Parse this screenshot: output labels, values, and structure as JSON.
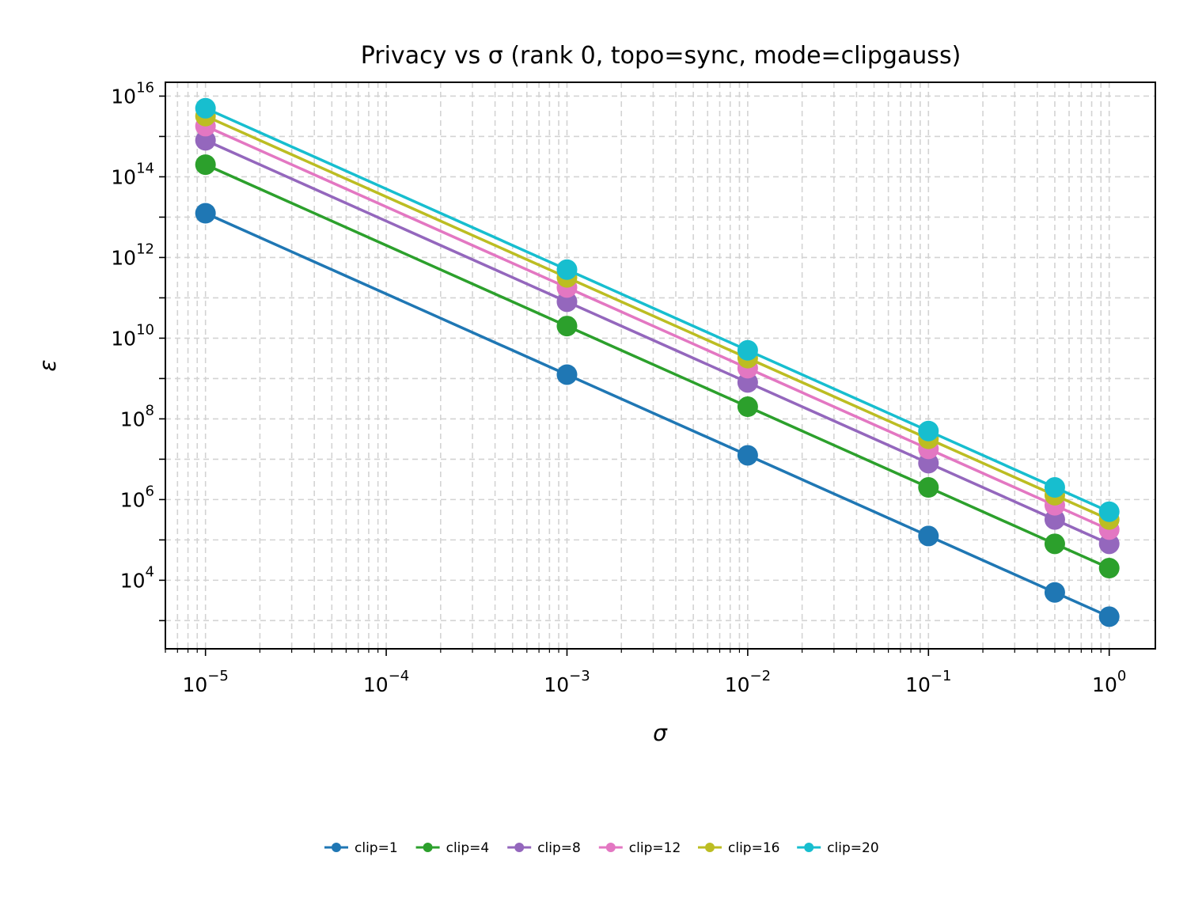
{
  "chart_data": {
    "type": "line",
    "title": "Privacy vs σ (rank 0, topo=sync, mode=clipgauss)",
    "xlabel": "σ",
    "ylabel": "ε",
    "xscale": "log",
    "yscale": "log",
    "xlim": [
      6e-06,
      1.8
    ],
    "ylim": [
      200,
      2.2e+16
    ],
    "grid": true,
    "legend_position": "below",
    "x": [
      1e-05,
      0.001,
      0.01,
      0.1,
      0.5,
      1
    ],
    "x_ticks": [
      {
        "value": 1e-05,
        "base": "10",
        "exp": "−5"
      },
      {
        "value": 0.0001,
        "base": "10",
        "exp": "−4"
      },
      {
        "value": 0.001,
        "base": "10",
        "exp": "−3"
      },
      {
        "value": 0.01,
        "base": "10",
        "exp": "−2"
      },
      {
        "value": 0.1,
        "base": "10",
        "exp": "−1"
      },
      {
        "value": 1,
        "base": "10",
        "exp": "0"
      }
    ],
    "y_ticks": [
      {
        "value": 10000.0,
        "base": "10",
        "exp": "4"
      },
      {
        "value": 1000000.0,
        "base": "10",
        "exp": "6"
      },
      {
        "value": 100000000.0,
        "base": "10",
        "exp": "8"
      },
      {
        "value": 10000000000.0,
        "base": "10",
        "exp": "10"
      },
      {
        "value": 1000000000000.0,
        "base": "10",
        "exp": "12"
      },
      {
        "value": 100000000000000.0,
        "base": "10",
        "exp": "14"
      },
      {
        "value": 1e+16,
        "base": "10",
        "exp": "16"
      }
    ],
    "series": [
      {
        "name": "clip=1",
        "color": "#1f77b4",
        "values": [
          12500000000000.0,
          1250000000.0,
          12500000.0,
          125000.0,
          5000,
          1250
        ]
      },
      {
        "name": "clip=4",
        "color": "#2ca02c",
        "values": [
          200000000000000.0,
          20000000000.0,
          200000000.0,
          2000000.0,
          80000.0,
          20000.0
        ]
      },
      {
        "name": "clip=8",
        "color": "#9467bd",
        "values": [
          800000000000000.0,
          80000000000.0,
          800000000.0,
          8000000.0,
          320000.0,
          80000.0
        ]
      },
      {
        "name": "clip=12",
        "color": "#e377c2",
        "values": [
          1800000000000000.0,
          180000000000.0,
          1800000000.0,
          18000000.0,
          720000.0,
          180000.0
        ]
      },
      {
        "name": "clip=16",
        "color": "#bcbd22",
        "values": [
          3200000000000000.0,
          320000000000.0,
          3200000000.0,
          32000000.0,
          1280000.0,
          320000.0
        ]
      },
      {
        "name": "clip=20",
        "color": "#17becf",
        "values": [
          5000000000000000.0,
          500000000000.0,
          5000000000.0,
          50000000.0,
          2000000.0,
          500000.0
        ]
      }
    ]
  }
}
